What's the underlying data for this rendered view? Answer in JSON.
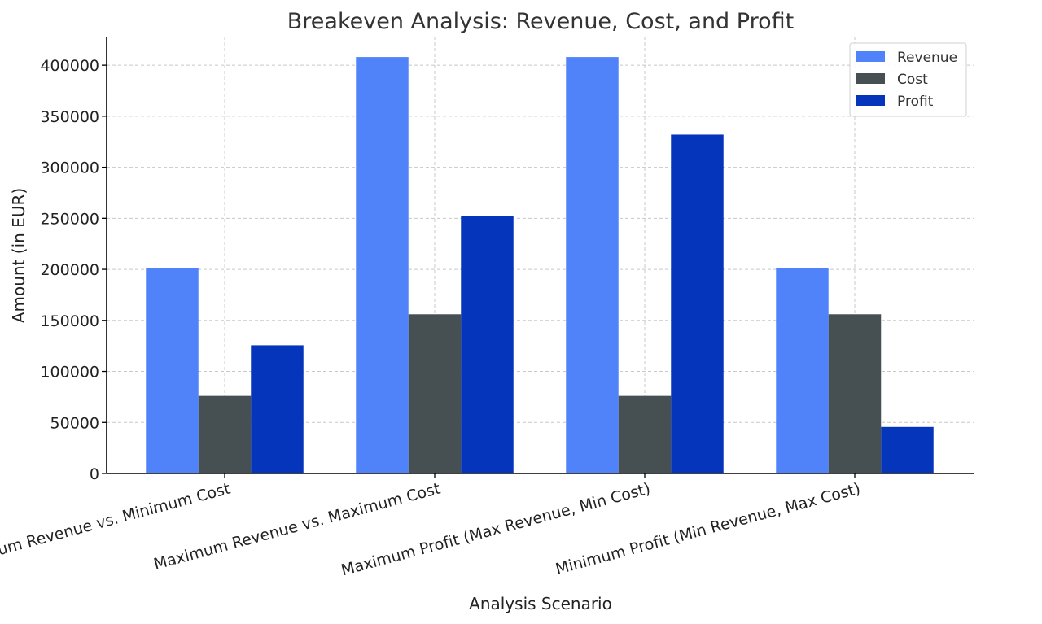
{
  "chart_data": {
    "type": "bar",
    "title": "Breakeven Analysis: Revenue, Cost, and Profit",
    "xlabel": "Analysis Scenario",
    "ylabel": "Amount (in EUR)",
    "categories": [
      "Minimum Revenue vs. Minimum Cost",
      "Maximum Revenue vs. Maximum Cost",
      "Maximum Profit (Max Revenue, Min Cost)",
      "Minimum Profit (Min Revenue, Max Cost)"
    ],
    "series": [
      {
        "name": "Revenue",
        "color": "#5083FA",
        "values": [
          201600,
          408000,
          408000,
          201600
        ]
      },
      {
        "name": "Cost",
        "color": "#465052",
        "values": [
          76000,
          156000,
          76000,
          156000
        ]
      },
      {
        "name": "Profit",
        "color": "#0535BB",
        "values": [
          125600,
          252000,
          332000,
          45600
        ]
      }
    ],
    "ylim": [
      0,
      428000
    ],
    "yticks": [
      0,
      50000,
      100000,
      150000,
      200000,
      250000,
      300000,
      350000,
      400000
    ],
    "grid": true,
    "legend_position": "top-right"
  }
}
